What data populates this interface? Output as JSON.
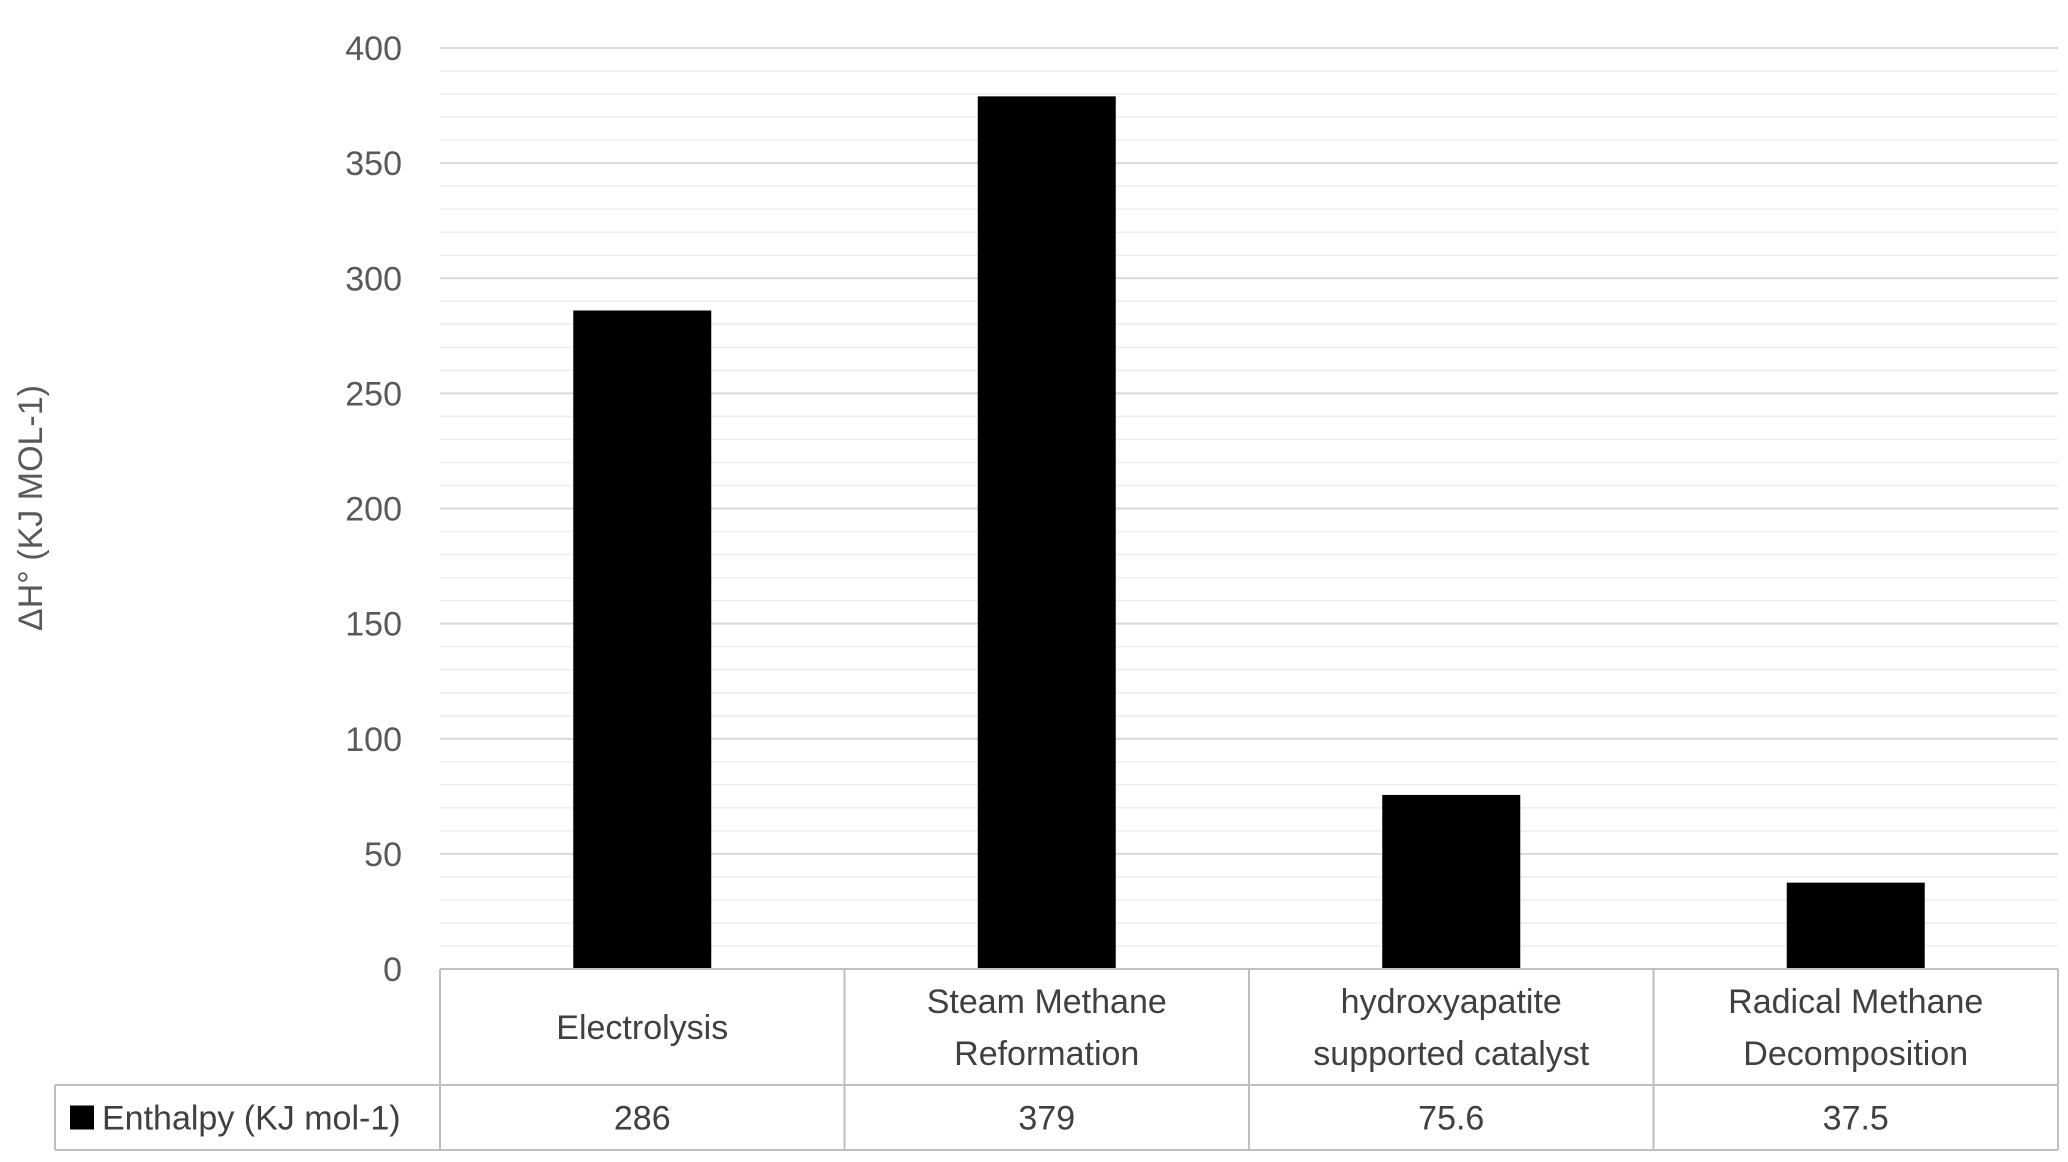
{
  "chart_data": {
    "type": "bar",
    "title": "",
    "ylabel": "ΔH° (KJ MOL-1)",
    "xlabel": "",
    "categories": [
      [
        "Electrolysis"
      ],
      [
        "Steam Methane",
        "Reformation"
      ],
      [
        "hydroxyapatite",
        "supported catalyst"
      ],
      [
        "Radical Methane",
        "Decomposition"
      ]
    ],
    "series": [
      {
        "name": "Enthalpy (KJ mol-1)",
        "values": [
          286,
          379,
          75.6,
          37.5
        ],
        "value_labels": [
          "286",
          "379",
          "75.6",
          "37.5"
        ],
        "color": "#000000"
      }
    ],
    "ylim": [
      0,
      400
    ],
    "yticks": [
      0,
      50,
      100,
      150,
      200,
      250,
      300,
      350,
      400
    ],
    "minor_tick_step": 10,
    "grid": true,
    "legend": "data-table",
    "colors": {
      "major_grid": "#d9d9d9",
      "minor_grid": "#eeeeee",
      "table_border": "#bfbfbf"
    }
  }
}
